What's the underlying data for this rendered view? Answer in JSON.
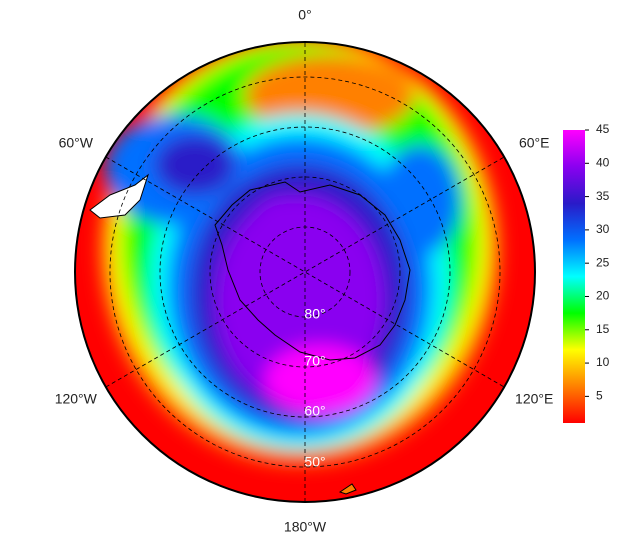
{
  "map": {
    "meridian_labels": [
      "0°",
      "60°E",
      "120°E",
      "180°W",
      "120°W",
      "60°W"
    ],
    "latitude_labels": [
      "80°",
      "70°",
      "60°",
      "50°"
    ],
    "colorbar": {
      "clim": [
        1,
        45
      ],
      "ticks": [
        5,
        10,
        15,
        20,
        25,
        30,
        35,
        40,
        45
      ],
      "colors": [
        "#ff0000",
        "#ff8000",
        "#ffff00",
        "#00ff00",
        "#00ffff",
        "#0070ff",
        "#2a1ac8",
        "#8a00f0",
        "#ff00ff"
      ]
    }
  }
}
